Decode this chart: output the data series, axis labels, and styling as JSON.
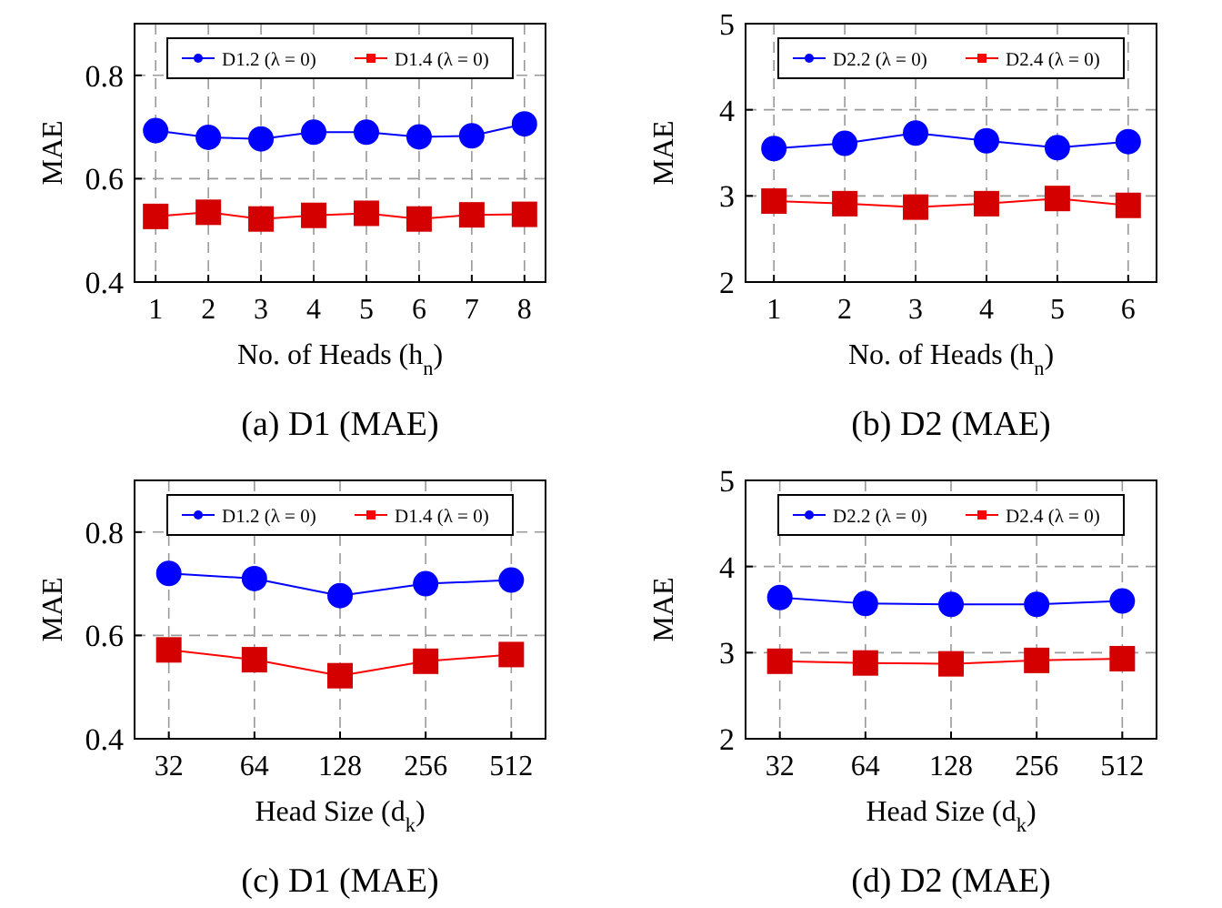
{
  "chart_data": [
    {
      "type": "line",
      "ylabel": "MAE",
      "xlabel": "No. of Heads (h$_{n}$)",
      "annotations": [
        "(a) D1 (MAE)"
      ],
      "categories": [
        "1",
        "2",
        "3",
        "4",
        "5",
        "6",
        "7",
        "8"
      ],
      "ylim": [
        0.4,
        0.9
      ],
      "yticks": [
        0.4,
        0.6,
        0.8
      ],
      "grid": true,
      "legend": "top",
      "line_style": "solid",
      "series": [
        {
          "name": "D1.2 (λ = 0)",
          "color": "#0000ff",
          "marker": "circle",
          "values": [
            0.693,
            0.68,
            0.677,
            0.69,
            0.69,
            0.681,
            0.683,
            0.706
          ]
        },
        {
          "name": "D1.4 (λ = 0)",
          "color": "#ff0000",
          "marker": "square",
          "values": [
            0.527,
            0.535,
            0.522,
            0.529,
            0.533,
            0.522,
            0.53,
            0.531
          ]
        }
      ]
    },
    {
      "type": "line",
      "ylabel": "MAE",
      "xlabel": "No. of Heads (h$_{n}$)",
      "annotations": [
        "(b) D2 (MAE)"
      ],
      "categories": [
        "1",
        "2",
        "3",
        "4",
        "5",
        "6"
      ],
      "ylim": [
        2,
        5
      ],
      "yticks": [
        2,
        3,
        4,
        5
      ],
      "grid": true,
      "legend": "top",
      "line_style": "solid",
      "series": [
        {
          "name": "D2.2 (λ = 0)",
          "color": "#0000ff",
          "marker": "circle",
          "values": [
            3.55,
            3.61,
            3.73,
            3.64,
            3.56,
            3.63
          ]
        },
        {
          "name": "D2.4 (λ = 0)",
          "color": "#ff0000",
          "marker": "square",
          "values": [
            2.94,
            2.91,
            2.87,
            2.91,
            2.97,
            2.89
          ]
        }
      ]
    },
    {
      "type": "line",
      "ylabel": "MAE",
      "xlabel": "Head Size (d$_{k}$)",
      "annotations": [
        "(c) D1 (MAE)"
      ],
      "categories": [
        "32",
        "64",
        "128",
        "256",
        "512"
      ],
      "ylim": [
        0.4,
        0.9
      ],
      "yticks": [
        0.4,
        0.6,
        0.8
      ],
      "grid": true,
      "legend": "top",
      "line_style": "solid",
      "series": [
        {
          "name": "D1.2 (λ = 0)",
          "color": "#0000ff",
          "marker": "circle",
          "values": [
            0.72,
            0.71,
            0.677,
            0.7,
            0.707
          ]
        },
        {
          "name": "D1.4 (λ = 0)",
          "color": "#ff0000",
          "marker": "square",
          "values": [
            0.572,
            0.553,
            0.522,
            0.55,
            0.563
          ]
        }
      ]
    },
    {
      "type": "line",
      "ylabel": "MAE",
      "xlabel": "Head Size (d$_{k}$)",
      "annotations": [
        "(d) D2 (MAE)"
      ],
      "categories": [
        "32",
        "64",
        "128",
        "256",
        "512"
      ],
      "ylim": [
        2,
        5
      ],
      "yticks": [
        2,
        3,
        4,
        5
      ],
      "grid": true,
      "legend": "top",
      "line_style": "solid",
      "series": [
        {
          "name": "D2.2 (λ = 0)",
          "color": "#0000ff",
          "marker": "circle",
          "values": [
            3.64,
            3.57,
            3.56,
            3.56,
            3.6
          ]
        },
        {
          "name": "D2.4 (λ = 0)",
          "color": "#ff0000",
          "marker": "square",
          "values": [
            2.9,
            2.88,
            2.87,
            2.91,
            2.93
          ]
        }
      ]
    }
  ]
}
